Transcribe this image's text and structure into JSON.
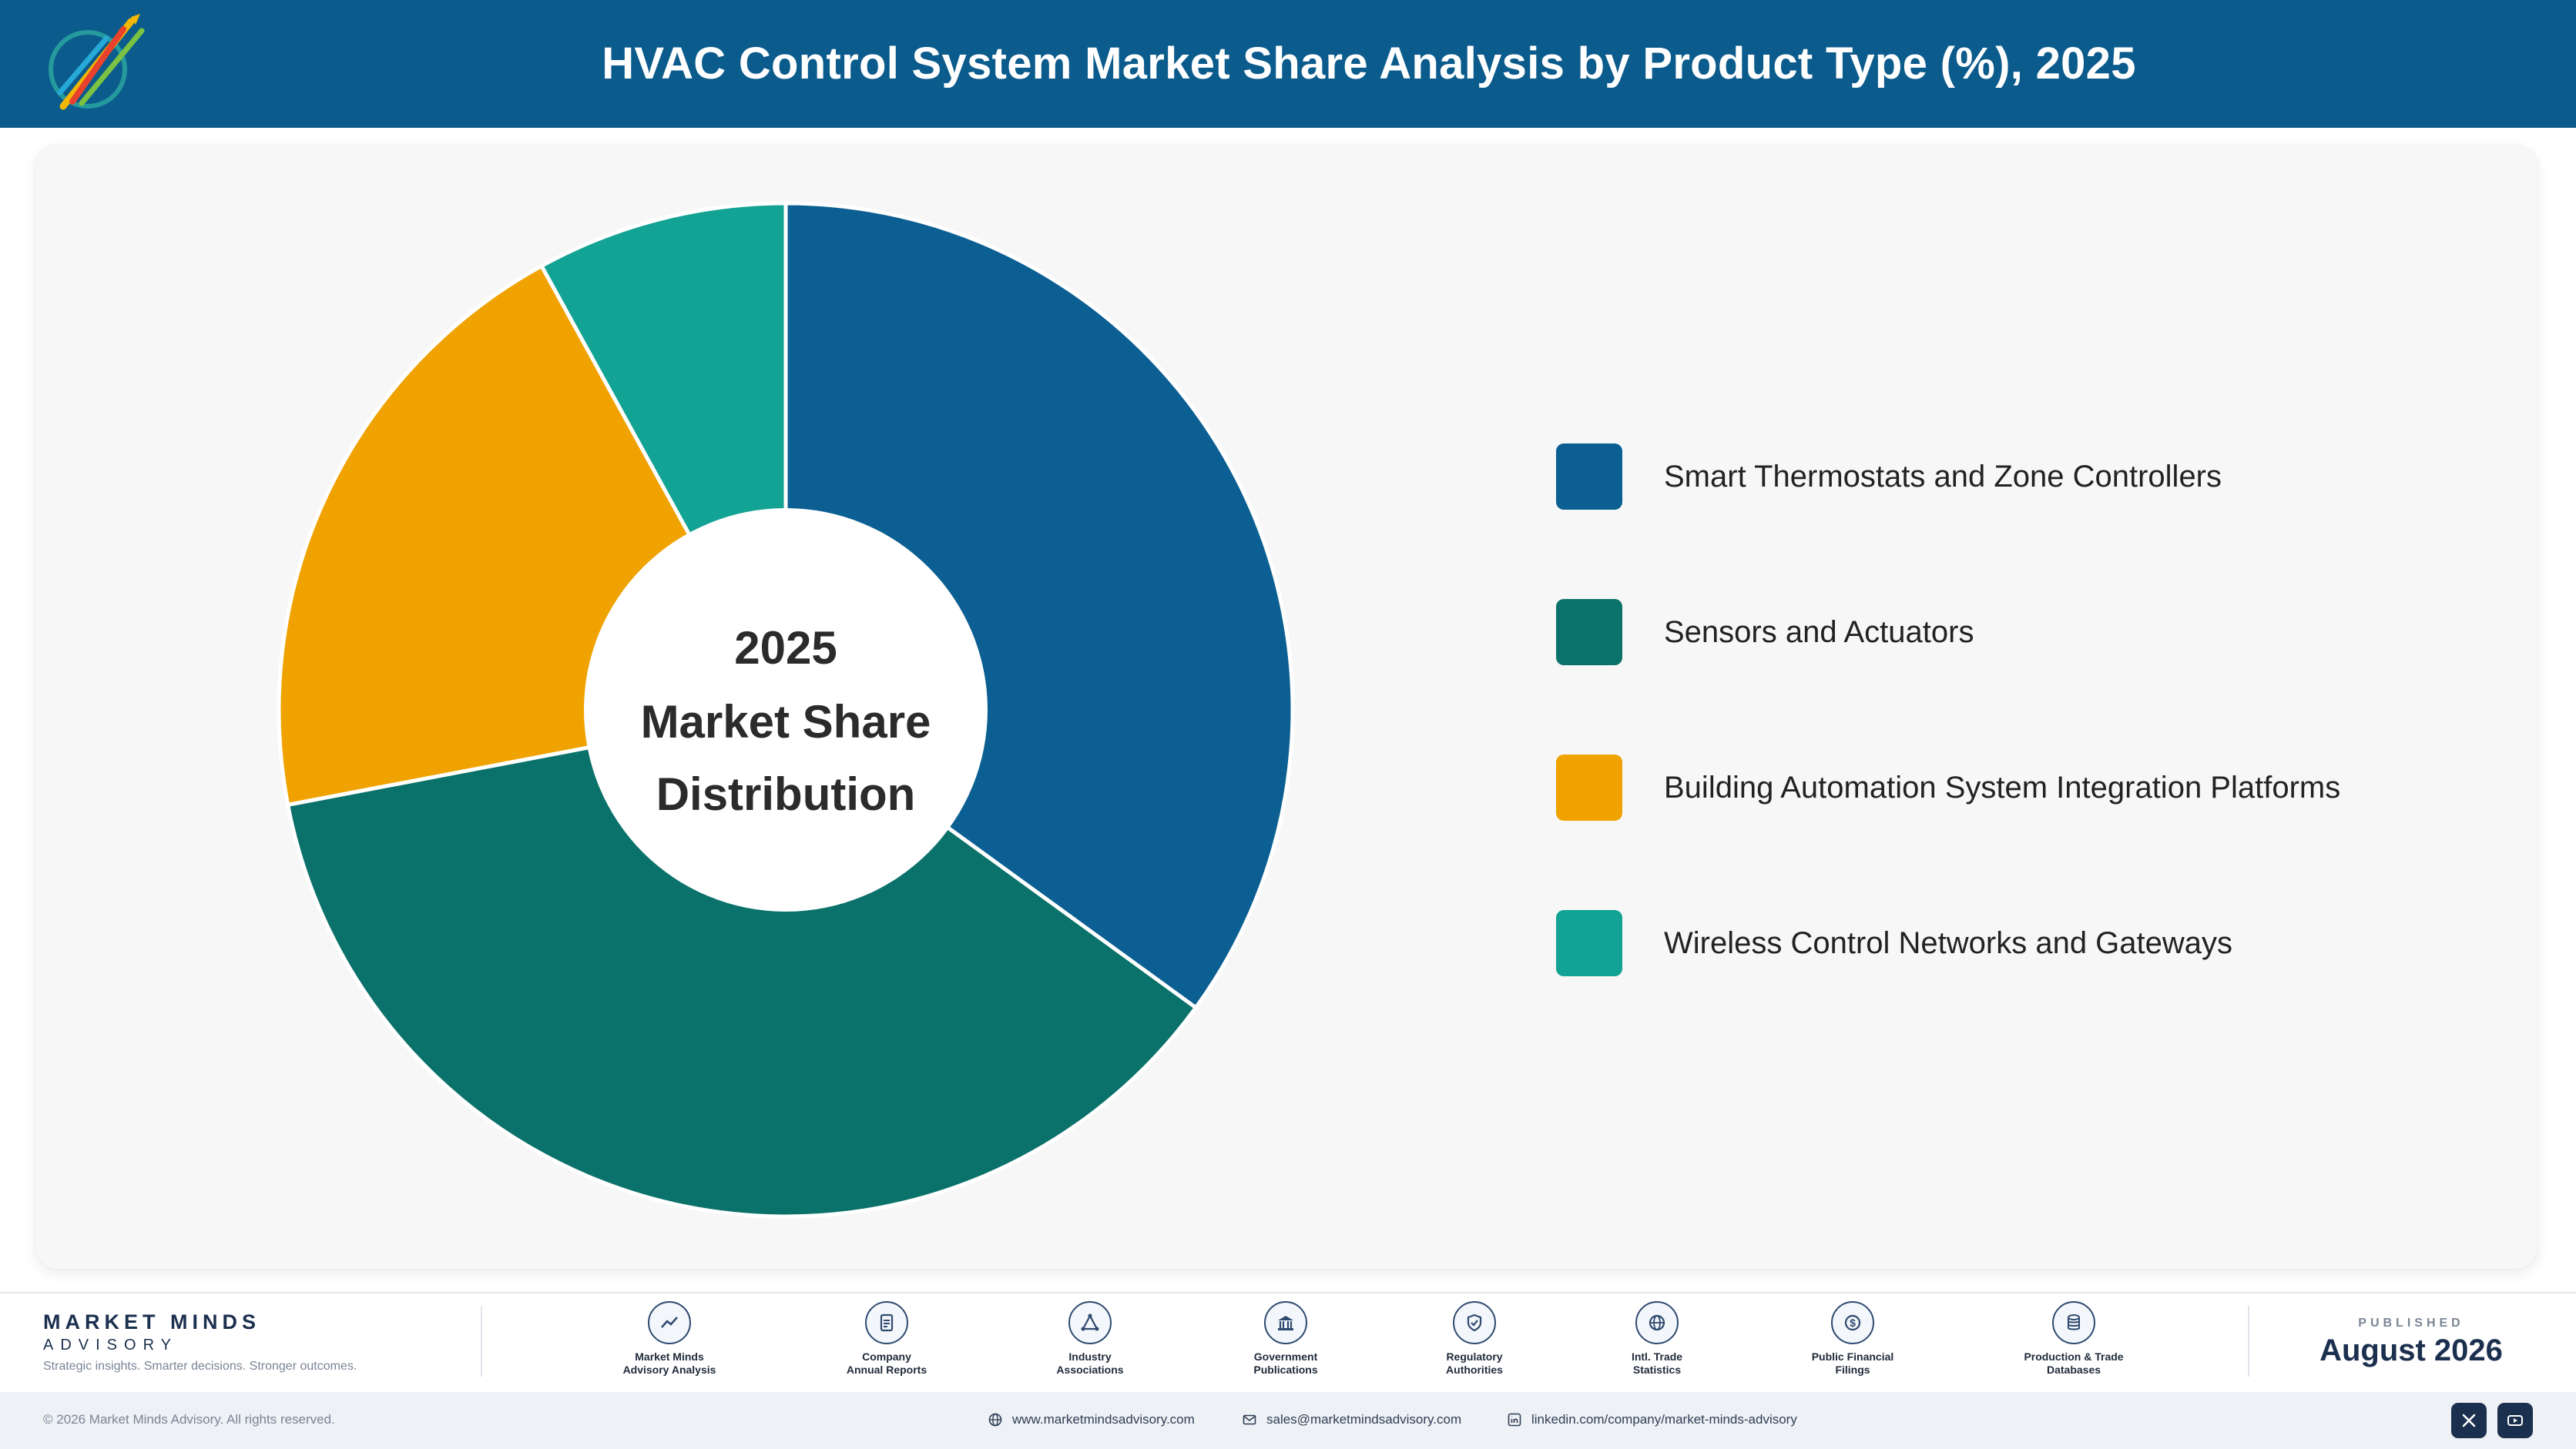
{
  "header": {
    "title": "HVAC Control System Market Share Analysis by Product Type (%), 2025"
  },
  "chart_data": {
    "type": "pie",
    "donut": true,
    "title": "HVAC Control System Market Share Analysis by Product Type (%), 2025",
    "center_label": [
      "2025",
      "Market Share",
      "Distribution"
    ],
    "legend_position": "right",
    "series": [
      {
        "name": "Smart Thermostats and Zone Controllers",
        "value": 35,
        "color": "#0b5f92"
      },
      {
        "name": "Sensors and Actuators",
        "value": 37,
        "color": "#0b726b"
      },
      {
        "name": "Building Automation System Integration Platforms",
        "value": 20,
        "color": "#f0a300"
      },
      {
        "name": "Wireless Control Networks and Gateways",
        "value": 8,
        "color": "#12a394"
      }
    ]
  },
  "footer": {
    "brand_name": "MARKET MINDS",
    "brand_sub": "ADVISORY",
    "tagline": "Strategic insights. Smarter decisions. Stronger outcomes.",
    "sources": [
      {
        "line1": "Market Minds",
        "line2": "Advisory Analysis",
        "icon": "trend-line-icon"
      },
      {
        "line1": "Company",
        "line2": "Annual Reports",
        "icon": "document-icon"
      },
      {
        "line1": "Industry",
        "line2": "Associations",
        "icon": "network-icon"
      },
      {
        "line1": "Government",
        "line2": "Publications",
        "icon": "government-building-icon"
      },
      {
        "line1": "Regulatory",
        "line2": "Authorities",
        "icon": "shield-check-icon"
      },
      {
        "line1": "Intl. Trade",
        "line2": "Statistics",
        "icon": "globe-icon"
      },
      {
        "line1": "Public Financial",
        "line2": "Filings",
        "icon": "dollar-coin-icon"
      },
      {
        "line1": "Production & Trade",
        "line2": "Databases",
        "icon": "database-icon"
      }
    ],
    "published_label": "PUBLISHED",
    "published_date": "August 2026"
  },
  "bottom_bar": {
    "copyright": "© 2026 Market Minds Advisory. All rights reserved.",
    "website": "www.marketmindsadvisory.com",
    "email": "sales@marketmindsadvisory.com",
    "linkedin": "linkedin.com/company/market-minds-advisory"
  },
  "colors": {
    "header_bg": "#0b5b8c",
    "brand_navy": "#1b2f4e"
  }
}
